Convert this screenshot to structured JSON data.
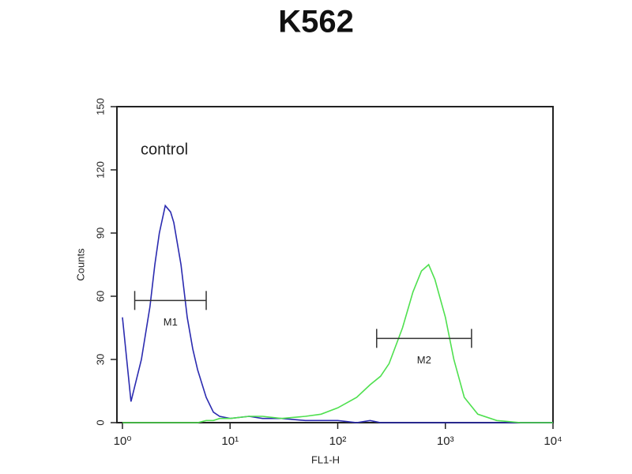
{
  "chart_data": {
    "type": "line",
    "title": "K562",
    "x_label": "FL1-H",
    "y_label": "Counts",
    "x_scale": "log",
    "annotations": [
      "control"
    ],
    "xlim": [
      1,
      10000
    ],
    "ylim": [
      0,
      150
    ],
    "xticks": [
      {
        "value": 1,
        "label": "10⁰"
      },
      {
        "value": 10,
        "label": "10¹"
      },
      {
        "value": 100,
        "label": "10²"
      },
      {
        "value": 1000,
        "label": "10³"
      },
      {
        "value": 10000,
        "label": "10⁴"
      }
    ],
    "yticks": [
      0,
      30,
      60,
      90,
      120,
      150
    ],
    "x": [
      1,
      1.2,
      1.5,
      1.8,
      2,
      2.2,
      2.5,
      2.8,
      3,
      3.5,
      4,
      4.5,
      5,
      6,
      7,
      8,
      10,
      15,
      20,
      30,
      50,
      70,
      100,
      150,
      200,
      250,
      300,
      400,
      500,
      600,
      700,
      800,
      1000,
      1200,
      1500,
      2000,
      3000,
      5000,
      10000
    ],
    "series": [
      {
        "name": "control",
        "color": "#2b2bb0",
        "values": [
          50,
          10,
          30,
          55,
          75,
          90,
          103,
          100,
          95,
          75,
          50,
          35,
          25,
          12,
          5,
          3,
          2,
          3,
          2,
          2,
          1,
          1,
          1,
          0,
          1,
          0,
          0,
          0,
          0,
          0,
          0,
          0,
          0,
          0,
          0,
          0,
          0,
          0,
          0
        ]
      },
      {
        "name": "K562",
        "color": "#4fe04f",
        "values": [
          0,
          0,
          0,
          0,
          0,
          0,
          0,
          0,
          0,
          0,
          0,
          0,
          0,
          1,
          1,
          2,
          2,
          3,
          3,
          2,
          3,
          4,
          7,
          12,
          18,
          22,
          28,
          45,
          62,
          72,
          75,
          68,
          50,
          30,
          12,
          4,
          1,
          0,
          0
        ]
      }
    ],
    "gates": [
      {
        "label": "M1",
        "x": [
          1.3,
          6
        ],
        "y": 58
      },
      {
        "label": "M2",
        "x": [
          230,
          1750
        ],
        "y": 40
      }
    ]
  }
}
